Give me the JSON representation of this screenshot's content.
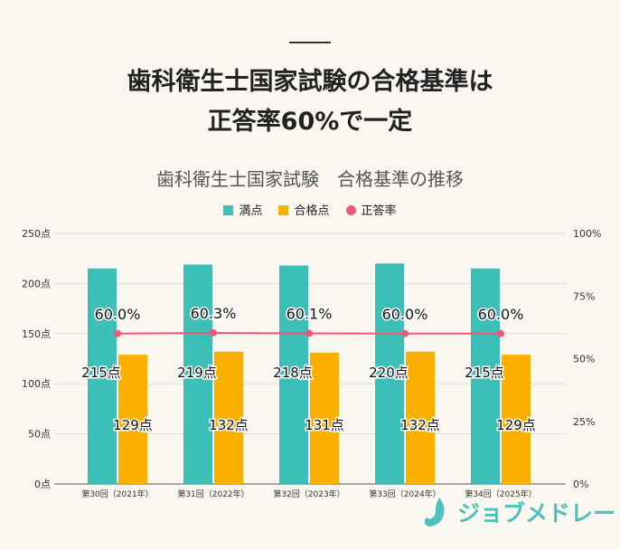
{
  "header": {
    "title_line1": "歯科衛生士国家試験の合格基準は",
    "title_line2": "正答率60%で一定"
  },
  "logo": {
    "text": "ジョブメドレー"
  },
  "chart_data": {
    "type": "bar",
    "title": "歯科衛生士国家試験　合格基準の推移",
    "categories": [
      "第30回（2021年）",
      "第31回（2022年）",
      "第32回（2023年）",
      "第33回（2024年）",
      "第34回（2025年）"
    ],
    "series": [
      {
        "name": "満点",
        "type": "bar",
        "axis": "left",
        "color": "#3bbfb8",
        "values": [
          215,
          219,
          218,
          220,
          215
        ],
        "labels": [
          "215点",
          "219点",
          "218点",
          "220点",
          "215点"
        ]
      },
      {
        "name": "合格点",
        "type": "bar",
        "axis": "left",
        "color": "#fbb000",
        "values": [
          129,
          132,
          131,
          132,
          129
        ],
        "labels": [
          "129点",
          "132点",
          "131点",
          "132点",
          "129点"
        ]
      },
      {
        "name": "正答率",
        "type": "line",
        "axis": "right",
        "color": "#f0577a",
        "values": [
          60.0,
          60.3,
          60.1,
          60.0,
          60.0
        ],
        "labels": [
          "60.0%",
          "60.3%",
          "60.1%",
          "60.0%",
          "60.0%"
        ]
      }
    ],
    "yleft": {
      "ylim": [
        0,
        250
      ],
      "ticks": [
        "0点",
        "50点",
        "100点",
        "150点",
        "200点",
        "250点"
      ]
    },
    "yright": {
      "ylim": [
        0,
        100
      ],
      "ticks": [
        "0%",
        "25%",
        "50%",
        "75%",
        "100%"
      ]
    },
    "grid": true,
    "legend": "top"
  }
}
